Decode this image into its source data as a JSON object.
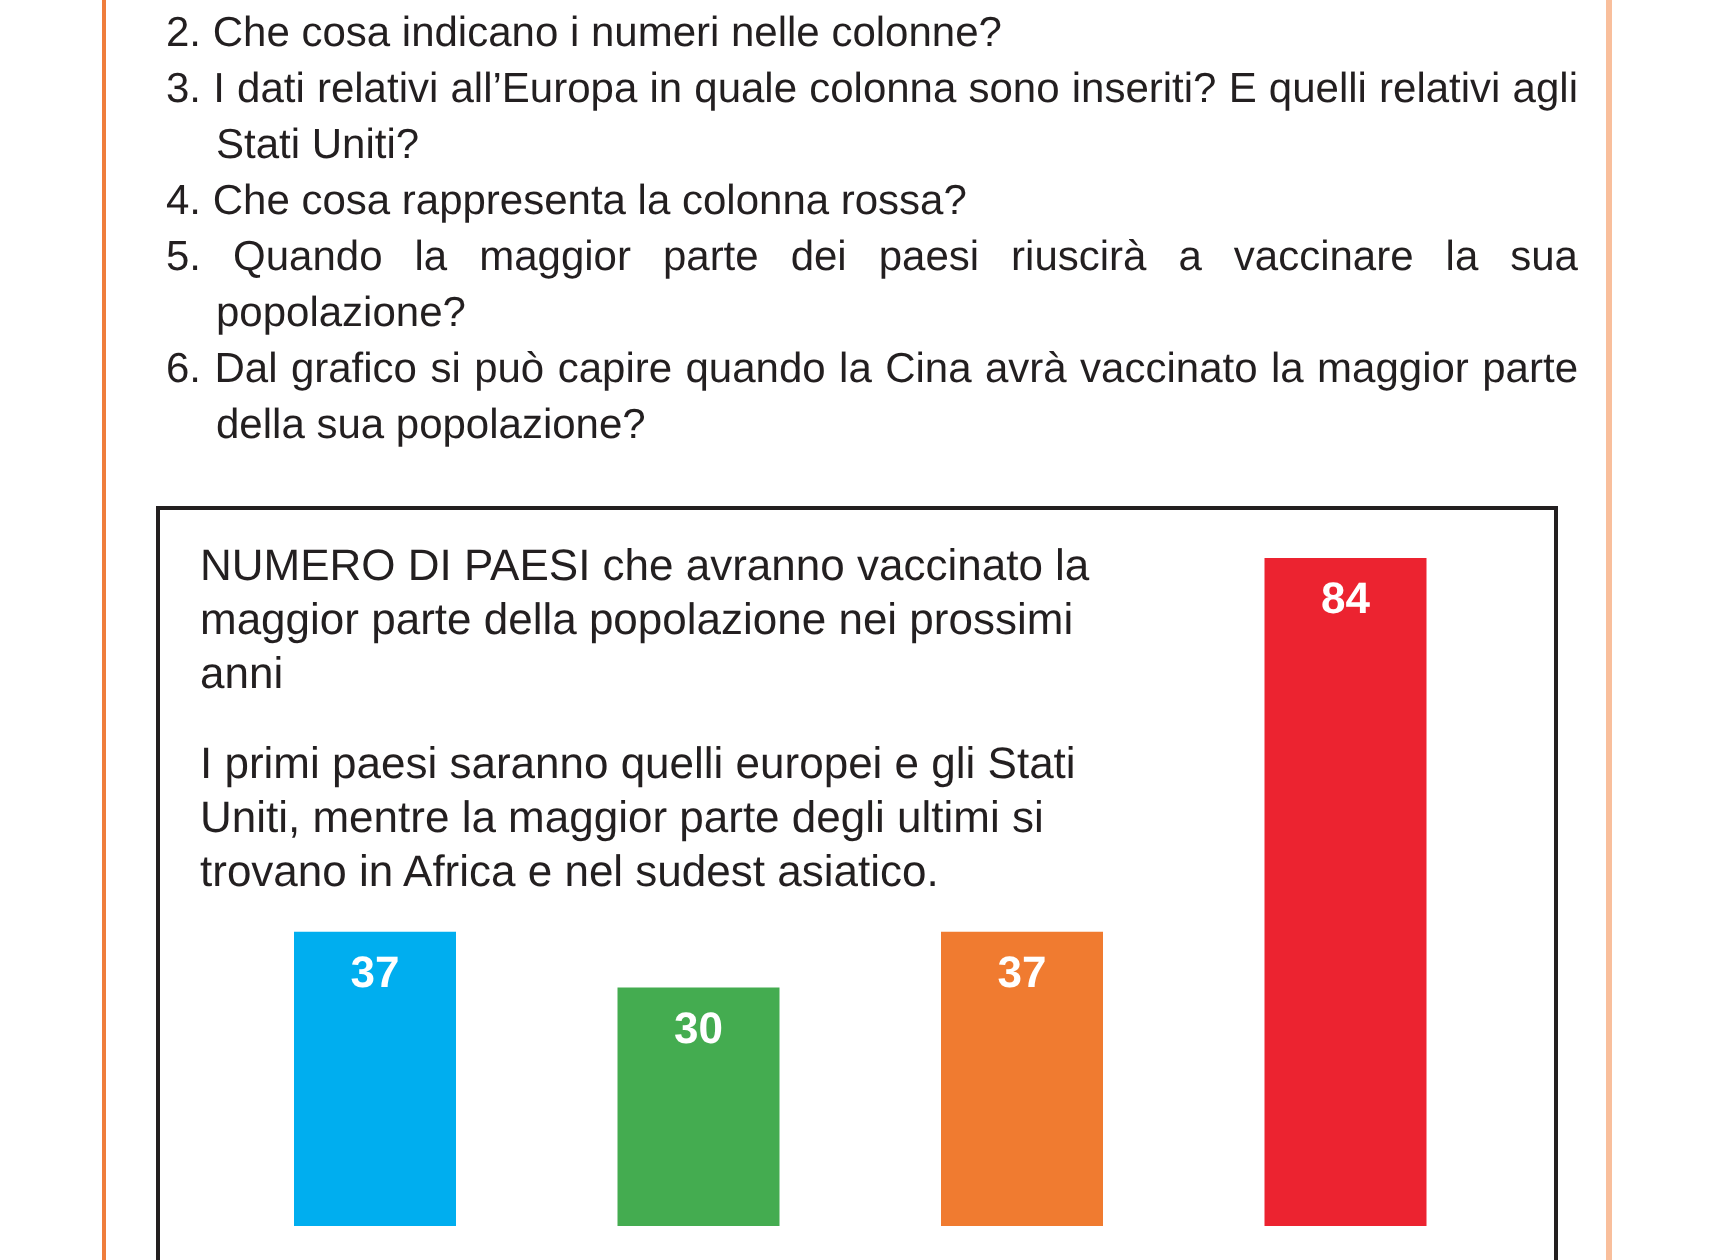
{
  "chart_data": {
    "type": "bar",
    "title": "NUMERO DI PAESI che avranno vaccinato la maggior parte della popolazione nei prossimi anni",
    "subtitle": "I primi paesi saranno quelli europei e gli Stati Uniti, mentre la maggior parte degli ultimi si trovano in Africa e nel sudest asiatico.",
    "annotations": [
      "2. Che cosa indicano i numeri nelle colonne?",
      "3. I dati relativi all’Europa in quale colonna sono inseriti? E quelli relativi agli Stati Uniti?",
      "4. Che cosa rappresenta la colonna rossa?",
      "5. Quando la maggior parte dei paesi riuscirà a vaccinare la sua popolazione?",
      "6. Dal grafico si può capire quando la Cina avrà vaccinato la maggior parte della sua popolazione?"
    ],
    "categories": [
      null,
      null,
      null,
      null
    ],
    "values": [
      37,
      30,
      37,
      84
    ],
    "colors": [
      "#00aeef",
      "#44ac50",
      "#f07b30",
      "#ec2330"
    ],
    "data_labels": true
  }
}
